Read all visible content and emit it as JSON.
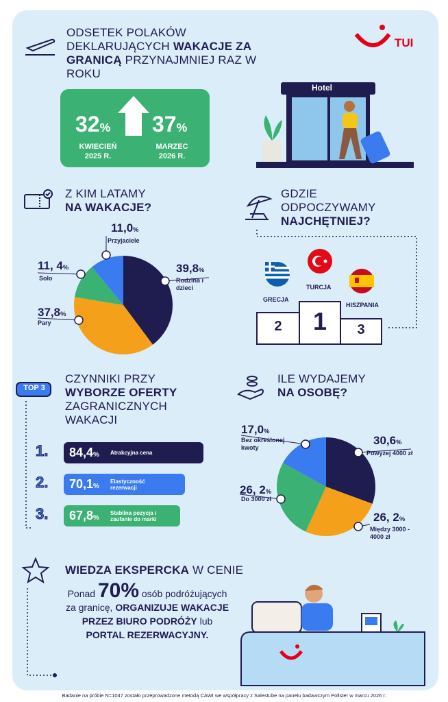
{
  "header": {
    "title_parts": [
      "ODSETEK POLAKÓW DEKLARUJĄCYCH ",
      "WAKACJE ZA GRANICĄ",
      " PRZYNAJMNIEJ RAZ W ROKU"
    ],
    "logo": "TUI",
    "before": {
      "value": "32%",
      "label": "KWIECIEŃ 2025 R."
    },
    "after": {
      "value": "37%",
      "label": "MARZEC 2026 R."
    },
    "hotel_sign": "Hotel"
  },
  "sections": {
    "who": {
      "title": [
        "Z KIM LATAMY",
        "NA WAKACJE?"
      ]
    },
    "where": {
      "title": [
        "GDZIE",
        "ODPOCZYWAMY",
        "NAJCHĘTNIEJ?"
      ],
      "podium": [
        {
          "place": "2",
          "country": "GRECJA"
        },
        {
          "place": "1",
          "country": "TURCJA"
        },
        {
          "place": "3",
          "country": "HISZPANIA"
        }
      ]
    },
    "factors": {
      "badge": "TOP 3",
      "title_parts": [
        "CZYNNIKI PRZY ",
        "WYBORZE OFERTY",
        " ZAGRANICZNYCH WAKACJI"
      ],
      "items": [
        {
          "rank": "1.",
          "value": "84,4%",
          "label": "Atrakcyjna cena"
        },
        {
          "rank": "2.",
          "value": "70,1%",
          "label": "Elastyczność rezerwacji"
        },
        {
          "rank": "3.",
          "value": "67,8%",
          "label": "Stabilna pozycja i zaufanie do marki"
        }
      ]
    },
    "spend": {
      "title": [
        "ILE WYDAJEMY",
        "NA OSOBĘ?"
      ]
    },
    "expert": {
      "title_parts": [
        "WIEDZA EKSPERCKA",
        " W CENIE"
      ],
      "text_parts": [
        "Ponad ",
        "70%",
        " osób podróżujących za granicę, ",
        "ORGANIZUJE WAKACJE PRZEZ BIURO PODRÓŻY",
        " lub ",
        "PORTAL REZERWACYJNY."
      ]
    }
  },
  "chart_data": [
    {
      "type": "pie",
      "categories": [
        "Rodzina i dzieci",
        "Pary",
        "Solo",
        "Przyjaciele"
      ],
      "values": [
        39.8,
        37.8,
        11.4,
        11.0
      ],
      "value_labels": [
        "39,8%",
        "37,8%",
        "11, 4%",
        "11,0%"
      ],
      "colors": [
        "#1f1c4f",
        "#f5a01a",
        "#3bb273",
        "#3a7bf0"
      ]
    },
    {
      "type": "pie",
      "categories": [
        "Powyżej 4000 zł",
        "Między 3000 - 4000 zł",
        "Do 3000 zł",
        "Bez określonej kwoty"
      ],
      "values": [
        30.6,
        26.2,
        26.2,
        17.0
      ],
      "value_labels": [
        "30,6%",
        "26, 2%",
        "26, 2%",
        "17,0%"
      ],
      "colors": [
        "#1f1c4f",
        "#f5a01a",
        "#3bb273",
        "#3a7bf0"
      ]
    }
  ],
  "footnote": "Badanie na próbie N=1047 zostało przeprowadzone metodą CAWI we współpracy z Salestube na panelu badawczym Pollster w marcu 2026 r."
}
